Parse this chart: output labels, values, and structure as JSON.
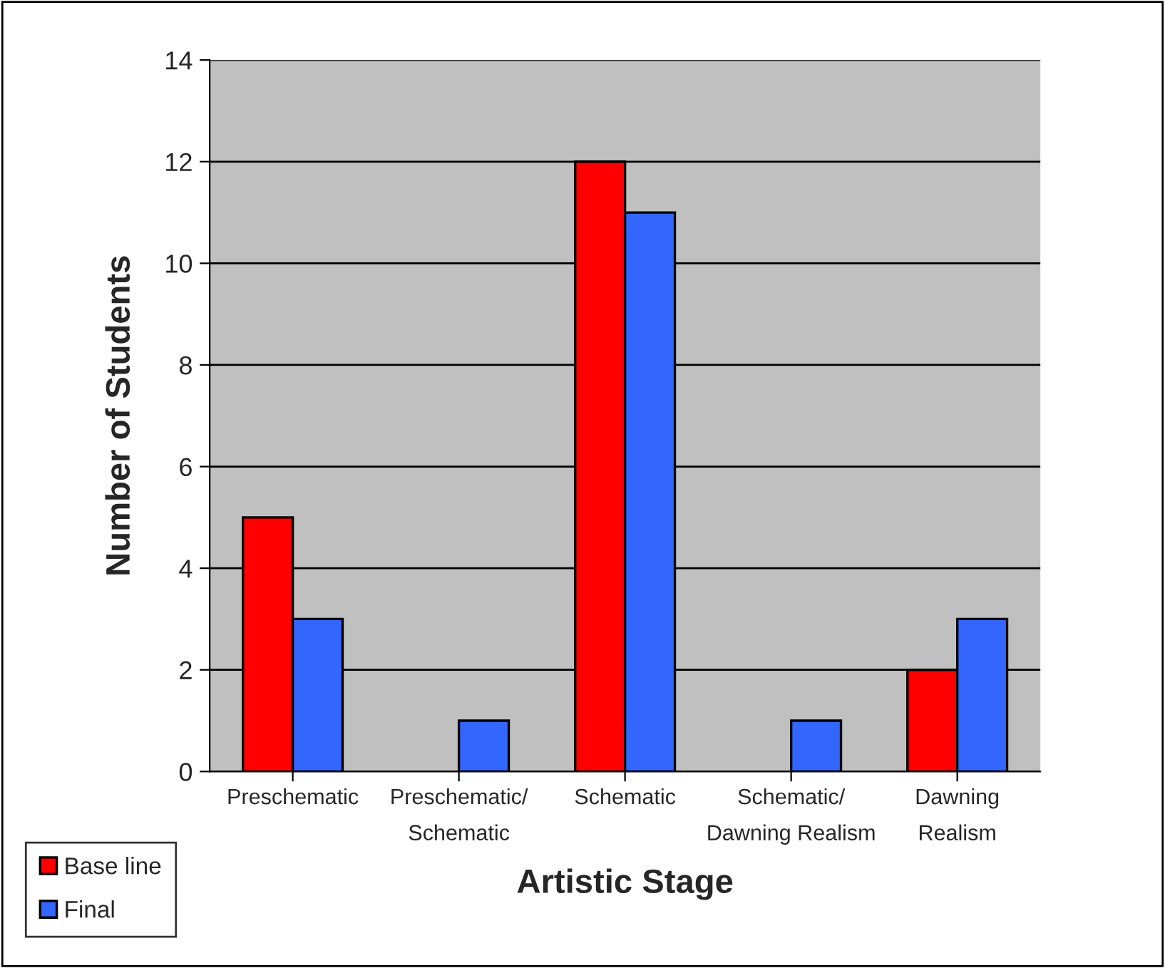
{
  "chart_data": {
    "type": "bar",
    "xlabel": "Artistic Stage",
    "ylabel": "Number of Students",
    "categories": [
      "Preschematic",
      "Preschematic/\nSchematic",
      "Schematic",
      "Schematic/\nDawning Realism",
      "Dawning\nRealism"
    ],
    "series": [
      {
        "name": "Base line",
        "color": "#ff0000",
        "values": [
          5,
          null,
          12,
          null,
          2
        ]
      },
      {
        "name": "Final",
        "color": "#3366ff",
        "values": [
          3,
          1,
          11,
          1,
          3
        ]
      }
    ],
    "ylim": [
      0,
      14
    ],
    "yticks": [
      0,
      2,
      4,
      6,
      8,
      10,
      12,
      14
    ],
    "grid": "y",
    "legend": "bottom left"
  }
}
